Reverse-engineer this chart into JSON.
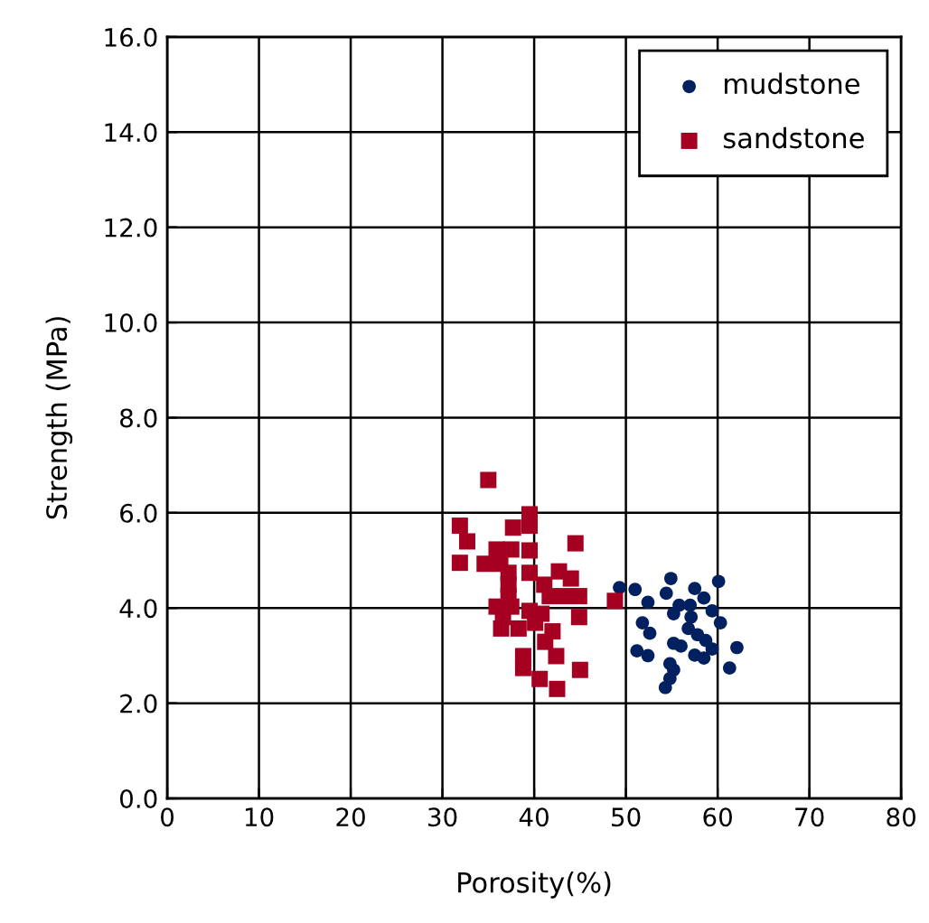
{
  "chart_data": {
    "type": "scatter",
    "xlabel": "Porosity(%)",
    "ylabel": "Strength (MPa)",
    "xlim": [
      0,
      80
    ],
    "xticks": [
      0,
      10,
      20,
      30,
      40,
      50,
      60,
      70,
      80
    ],
    "ylim": [
      0,
      16
    ],
    "yticks": [
      {
        "value": 0,
        "label": "0.0"
      },
      {
        "value": 2,
        "label": "2.0"
      },
      {
        "value": 4,
        "label": "4.0"
      },
      {
        "value": 6,
        "label": "6.0"
      },
      {
        "value": 8,
        "label": "8.0"
      },
      {
        "value": 10,
        "label": "10.0"
      },
      {
        "value": 12,
        "label": "12.0"
      },
      {
        "value": 14,
        "label": "14.0"
      },
      {
        "value": 16,
        "label": "16.0"
      }
    ],
    "grid": true,
    "legend": "top right",
    "series": [
      {
        "name": "mudstone",
        "color": "#002060",
        "marker": "circle",
        "x": [
          49.3,
          51.0,
          52.4,
          54.9,
          54.4,
          57.5,
          58.5,
          60.1,
          55.8,
          55.2,
          57.0,
          59.4,
          60.3,
          51.8,
          52.6,
          56.8,
          57.8,
          58.7,
          55.2,
          56.0,
          59.4,
          62.1,
          51.2,
          52.4,
          57.5,
          58.5,
          54.8,
          55.2,
          61.3,
          54.8,
          54.3,
          57.1
        ],
        "values": [
          4.43,
          4.39,
          4.12,
          4.62,
          4.31,
          4.41,
          4.21,
          4.56,
          4.06,
          3.88,
          4.06,
          3.94,
          3.69,
          3.69,
          3.47,
          3.57,
          3.44,
          3.32,
          3.26,
          3.2,
          3.14,
          3.17,
          3.1,
          3.0,
          3.01,
          2.95,
          2.83,
          2.7,
          2.74,
          2.52,
          2.33,
          3.81
        ]
      },
      {
        "name": "sandstone",
        "color": "#a50021",
        "marker": "square",
        "x": [
          35.0,
          31.9,
          32.7,
          31.9,
          39.5,
          39.5,
          37.7,
          35.9,
          37.5,
          39.5,
          44.5,
          34.6,
          36.3,
          37.2,
          39.5,
          42.7,
          44.0,
          37.2,
          41.1,
          44.9,
          41.7,
          43.3,
          37.2,
          35.9,
          37.5,
          39.5,
          40.8,
          44.9,
          48.8,
          36.6,
          36.4,
          38.3,
          40.1,
          42.0,
          41.2,
          38.8,
          42.4,
          38.8,
          40.6,
          45.0,
          42.5
        ],
        "values": [
          6.69,
          5.73,
          5.4,
          4.95,
          5.97,
          5.73,
          5.69,
          5.23,
          5.23,
          5.21,
          5.36,
          4.93,
          4.93,
          4.74,
          4.74,
          4.77,
          4.62,
          4.49,
          4.49,
          4.25,
          4.25,
          4.25,
          4.25,
          4.03,
          4.03,
          3.94,
          3.88,
          3.81,
          4.15,
          3.81,
          3.57,
          3.57,
          3.69,
          3.51,
          3.29,
          2.99,
          2.99,
          2.74,
          2.51,
          2.7,
          2.3
        ]
      }
    ]
  }
}
